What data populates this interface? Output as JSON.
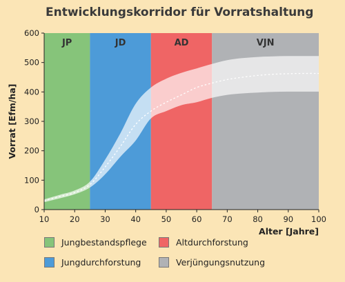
{
  "chart_data": {
    "type": "area",
    "title": "Entwicklungskorridor für Vorratshaltung",
    "xlabel": "Alter [Jahre]",
    "ylabel": "Vorrat [Efm/ha]",
    "xlim": [
      10,
      100
    ],
    "ylim": [
      0,
      600
    ],
    "x_ticks": [
      "10",
      "20",
      "30",
      "40",
      "50",
      "60",
      "70",
      "80",
      "90",
      "100"
    ],
    "y_ticks": [
      "0",
      "100",
      "200",
      "300",
      "400",
      "500",
      "600"
    ],
    "phases": [
      {
        "code": "JP",
        "name": "Jungbestandspflege",
        "from": 10,
        "to": 25,
        "color": "#86c47a"
      },
      {
        "code": "JD",
        "name": "Jungdurchforstung",
        "from": 25,
        "to": 45,
        "color": "#4d9bd8"
      },
      {
        "code": "AD",
        "name": "Altdurchforstung",
        "from": 45,
        "to": 65,
        "color": "#ef6565"
      },
      {
        "code": "VJN",
        "name": "Verjüngungsnutzung",
        "from": 65,
        "to": 100,
        "color": "#b0b2b5"
      }
    ],
    "x": [
      10,
      15,
      20,
      25,
      30,
      35,
      40,
      45,
      50,
      55,
      60,
      65,
      70,
      75,
      80,
      85,
      90,
      95,
      100
    ],
    "series": [
      {
        "role": "upper",
        "values": [
          35,
          50,
          65,
          95,
          170,
          260,
          360,
          415,
          445,
          465,
          480,
          495,
          508,
          515,
          519,
          521,
          522,
          522,
          522
        ]
      },
      {
        "role": "median",
        "values": [
          30,
          44,
          58,
          85,
          145,
          215,
          290,
          335,
          365,
          390,
          415,
          430,
          442,
          450,
          456,
          460,
          462,
          463,
          463
        ]
      },
      {
        "role": "lower",
        "values": [
          25,
          38,
          52,
          75,
          120,
          180,
          235,
          310,
          335,
          355,
          365,
          380,
          390,
          395,
          398,
          400,
          401,
          401,
          401
        ]
      }
    ],
    "grid": false,
    "legend_position": "bottom"
  }
}
